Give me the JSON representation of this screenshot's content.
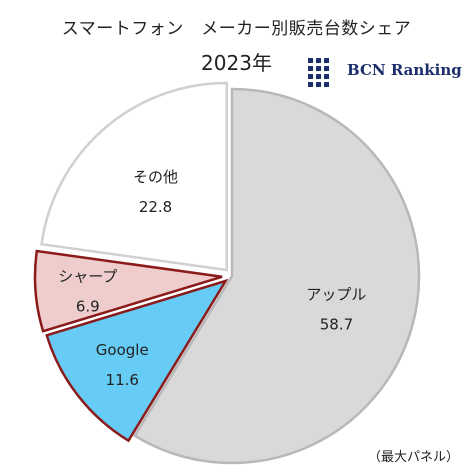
{
  "title": "スマートフォン　メーカー別販売台数シェア",
  "subtitle": "2023年",
  "logo_text": "BCN Ranking",
  "note": "（最大パネル）",
  "chart_data": {
    "type": "pie",
    "title": "スマートフォン　メーカー別販売台数シェア",
    "subtitle": "2023年",
    "categories": [
      "アップル",
      "Google",
      "シャープ",
      "その他"
    ],
    "values": [
      58.7,
      11.6,
      6.9,
      22.8
    ],
    "colors": [
      "#d9d9d9",
      "#66ccf5",
      "#efcdcd",
      "#ffffff"
    ],
    "edge_colors": [
      "#b8b8b8",
      "#8b1a1a",
      "#8b1a1a",
      "#d0d0d0"
    ],
    "exploded": true,
    "legend": "none"
  },
  "colors": {
    "logo_blue": "#1c2f6b",
    "edge_red": "#8b1a1a"
  }
}
